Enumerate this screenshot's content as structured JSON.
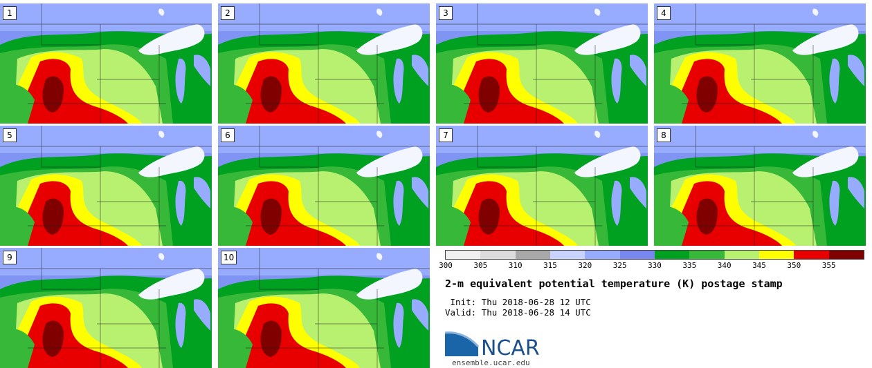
{
  "panels": [
    {
      "label": "1"
    },
    {
      "label": "2"
    },
    {
      "label": "3"
    },
    {
      "label": "4"
    },
    {
      "label": "5"
    },
    {
      "label": "6"
    },
    {
      "label": "7"
    },
    {
      "label": "8"
    },
    {
      "label": "9"
    },
    {
      "label": "10"
    }
  ],
  "colorbar": {
    "ticks": [
      "300",
      "305",
      "310",
      "315",
      "320",
      "325",
      "330",
      "335",
      "340",
      "345",
      "350",
      "355"
    ],
    "colors": [
      "#f0f0f0",
      "#dcdcdc",
      "#a8a8a8",
      "#c8d4ff",
      "#98acff",
      "#7888f0",
      "#00a020",
      "#38b838",
      "#b8f070",
      "#ffff00",
      "#e80000",
      "#800000"
    ]
  },
  "title": "2-m equivalent potential temperature (K) postage stamp",
  "init": " Init: Thu 2018-06-28 12 UTC",
  "valid": "Valid: Thu 2018-06-28 14 UTC",
  "logo": {
    "text": "NCAR",
    "url": "ensemble.ucar.edu"
  }
}
